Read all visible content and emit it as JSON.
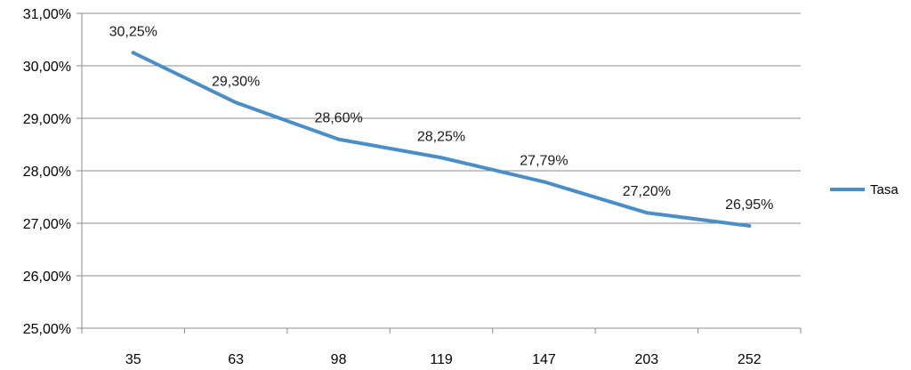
{
  "chart_data": {
    "type": "line",
    "title": "",
    "xlabel": "",
    "ylabel": "",
    "categories": [
      "35",
      "63",
      "98",
      "119",
      "147",
      "203",
      "252"
    ],
    "series": [
      {
        "name": "Tasa",
        "values": [
          30.25,
          29.3,
          28.6,
          28.25,
          27.79,
          27.2,
          26.95
        ],
        "data_labels": [
          "30,25%",
          "29,30%",
          "28,60%",
          "28,25%",
          "27,79%",
          "27,20%",
          "26,95%"
        ],
        "color": "#4a8ec8"
      }
    ],
    "ylim": [
      25,
      31
    ],
    "y_ticks": [
      25,
      26,
      27,
      28,
      29,
      30,
      31
    ],
    "y_tick_labels": [
      "25,00%",
      "26,00%",
      "27,00%",
      "28,00%",
      "29,00%",
      "30,00%",
      "31,00%"
    ],
    "grid": true,
    "legend_position": "right"
  }
}
